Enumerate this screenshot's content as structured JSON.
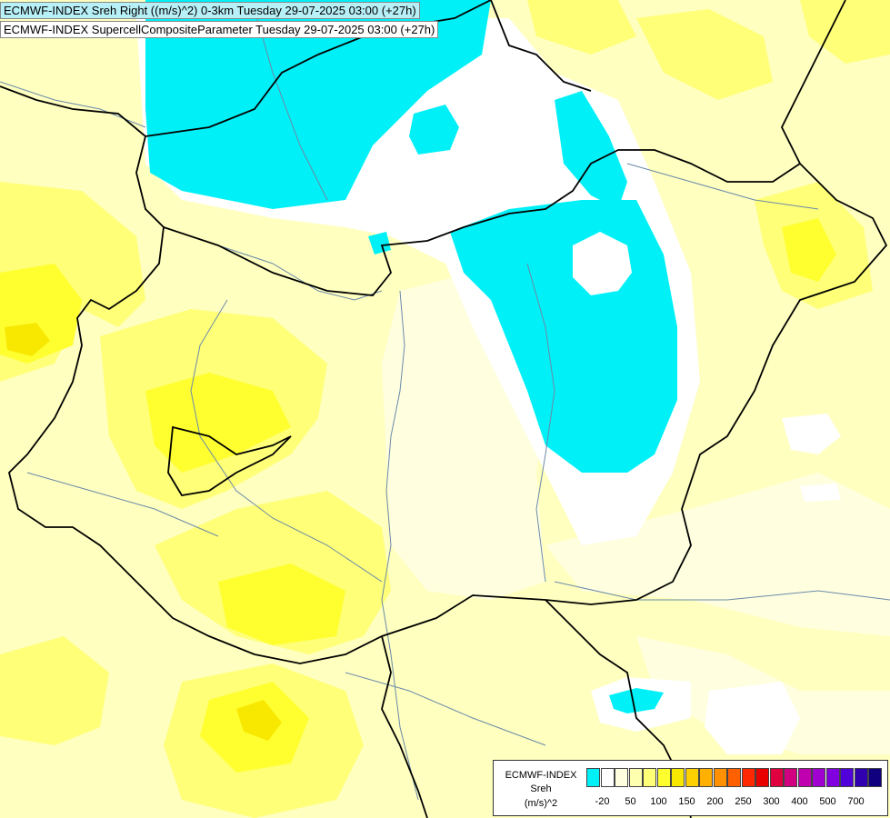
{
  "header": {
    "line1": "ECMWF-INDEX Sreh Right ((m/s)^2) 0-3km Tuesday 29-07-2025 03:00 (+27h)",
    "line2": "ECMWF-INDEX SupercellCompositeParameter Tuesday 29-07-2025 03:00 (+27h)"
  },
  "legend": {
    "title": "ECMWF-INDEX",
    "variable": "Sreh",
    "unit": "(m/s)^2",
    "colors": [
      "#00f0f8",
      "#ffffff",
      "#ffffe0",
      "#ffffb0",
      "#ffff78",
      "#ffff30",
      "#f8e800",
      "#ffd000",
      "#ffb000",
      "#ff9000",
      "#ff6000",
      "#ff2800",
      "#e80000",
      "#e00040",
      "#d00080",
      "#c000b0",
      "#a000d0",
      "#8000e0",
      "#5000d8",
      "#3000b0",
      "#100080"
    ],
    "ticks": [
      "-20",
      "50",
      "100",
      "150",
      "200",
      "250",
      "300",
      "400",
      "500",
      "700"
    ]
  },
  "map": {
    "field_colors": {
      "base": "#ffffc0",
      "light": "#ffffe0",
      "medium": "#ffff78",
      "strong": "#ffff30",
      "max": "#f8e800",
      "negative": "#00f0f8",
      "zero": "#ffffff"
    },
    "border_color": "#000000",
    "river_color": "#6a8aa8"
  }
}
